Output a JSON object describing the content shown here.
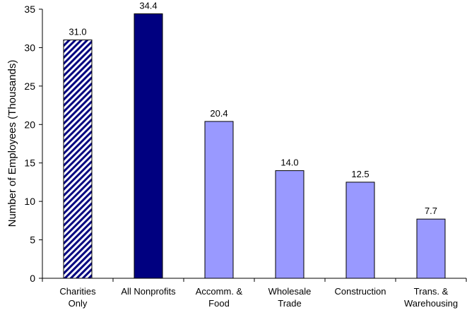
{
  "chart_data": {
    "type": "bar",
    "title": "",
    "xlabel": "",
    "ylabel": "Number of Employees (Thousands)",
    "ylim": [
      0,
      35
    ],
    "yticks": [
      0,
      5,
      10,
      15,
      20,
      25,
      30,
      35
    ],
    "grid": false,
    "legend": "none",
    "categories": [
      [
        "Charities",
        "Only"
      ],
      [
        "All Nonprofits"
      ],
      [
        "Accomm. &",
        "Food"
      ],
      [
        "Wholesale",
        "Trade"
      ],
      [
        "Construction"
      ],
      [
        "Trans. &",
        "Warehousing"
      ]
    ],
    "values": [
      31.0,
      34.4,
      20.4,
      14.0,
      12.5,
      7.7
    ],
    "data_labels": [
      "31.0",
      "34.4",
      "20.4",
      "14.0",
      "12.5",
      "7.7"
    ],
    "bar_styles": [
      "hatched",
      "dark",
      "light",
      "light",
      "light",
      "light"
    ],
    "colors": {
      "dark": "#000080",
      "light": "#9999FF",
      "hatch_fg": "#000080",
      "hatch_bg": "#ffffff",
      "axis": "#000000"
    }
  }
}
